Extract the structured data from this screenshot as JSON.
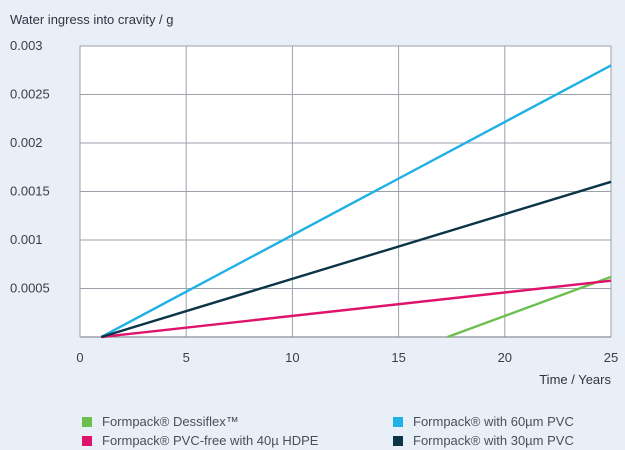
{
  "chart_data": {
    "type": "line",
    "ylabel": "Water ingress into cravity / g",
    "xlabel": "Time / Years",
    "xlim": [
      0,
      25
    ],
    "ylim": [
      0,
      0.003
    ],
    "x_ticks": [
      "0",
      "5",
      "10",
      "15",
      "20",
      "25"
    ],
    "y_ticks": [
      "0.0005",
      "0.001",
      "0.0015",
      "0.002",
      "0.0025",
      "0.003"
    ],
    "grid": true,
    "legend_position": "bottom",
    "series": [
      {
        "name": "Formpack® Dessiflex™",
        "color": "#6cbf4f",
        "points": [
          [
            17.3,
            0
          ],
          [
            25,
            0.00062
          ]
        ]
      },
      {
        "name": "Formpack® with 60µm PVC",
        "color": "#1fb0e6",
        "points": [
          [
            1,
            0
          ],
          [
            25,
            0.0028
          ]
        ]
      },
      {
        "name": "Formpack® PVC-free with 40µ HDPE",
        "color": "#e0136c",
        "points": [
          [
            1,
            0
          ],
          [
            25,
            0.00058
          ]
        ]
      },
      {
        "name": "Formpack® with 30µm PVC",
        "color": "#0c3548",
        "points": [
          [
            1,
            0
          ],
          [
            25,
            0.0016
          ]
        ]
      }
    ]
  }
}
